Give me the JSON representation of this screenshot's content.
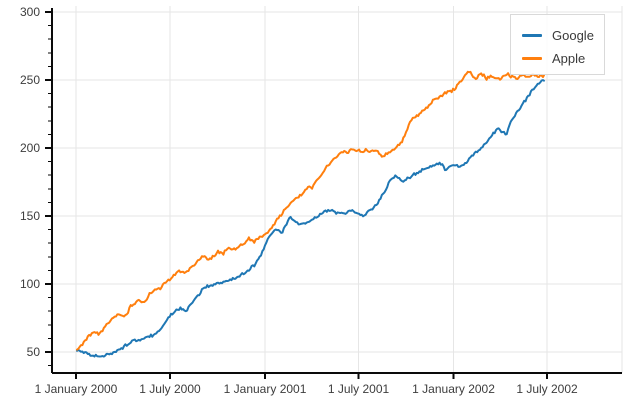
{
  "chart_data": {
    "type": "line",
    "title": "",
    "xlabel": "",
    "ylabel": "",
    "grid": true,
    "legend_position": "top-right",
    "x_axis": {
      "kind": "date",
      "ticks": [
        {
          "day": 0,
          "label": "1 January 2000"
        },
        {
          "day": 182,
          "label": "1 July 2000"
        },
        {
          "day": 366,
          "label": "1 January 2001"
        },
        {
          "day": 547,
          "label": "1 July 2001"
        },
        {
          "day": 731,
          "label": "1 January 2002"
        },
        {
          "day": 912,
          "label": "1 July 2002"
        }
      ],
      "data_day_range": [
        2,
        906
      ]
    },
    "y_axis": {
      "major_ticks": [
        50,
        100,
        150,
        200,
        250,
        300
      ],
      "minor_step": 10,
      "visible_range": [
        34.6,
        304.4
      ]
    },
    "colors": {
      "axis": "#0a0a0a",
      "grid": "#e6e6e6",
      "tick_label": "#3d3d3d",
      "legend_border": "#d9d9d9",
      "legend_text": "#3a3a3a",
      "background": "#ffffff"
    },
    "series": [
      {
        "name": "Google",
        "color": "#1f77b4",
        "points": [
          [
            2,
            51
          ],
          [
            12,
            50
          ],
          [
            25,
            48
          ],
          [
            42,
            46.8
          ],
          [
            55,
            47.6
          ],
          [
            70,
            49.5
          ],
          [
            85,
            52
          ],
          [
            100,
            55.5
          ],
          [
            112,
            58.8
          ],
          [
            122,
            58
          ],
          [
            135,
            60.5
          ],
          [
            150,
            62.5
          ],
          [
            163,
            66
          ],
          [
            172,
            71
          ],
          [
            182,
            77
          ],
          [
            192,
            80
          ],
          [
            203,
            82
          ],
          [
            210,
            79.5
          ],
          [
            222,
            84
          ],
          [
            235,
            91
          ],
          [
            248,
            97.5
          ],
          [
            260,
            99
          ],
          [
            272,
            100
          ],
          [
            285,
            101
          ],
          [
            300,
            103
          ],
          [
            315,
            105.5
          ],
          [
            330,
            109
          ],
          [
            345,
            114
          ],
          [
            358,
            121
          ],
          [
            366,
            128.5
          ],
          [
            377,
            136
          ],
          [
            388,
            140
          ],
          [
            398,
            137.5
          ],
          [
            408,
            144
          ],
          [
            415,
            149.5
          ],
          [
            424,
            146
          ],
          [
            434,
            143.5
          ],
          [
            448,
            145
          ],
          [
            462,
            148.5
          ],
          [
            478,
            152.5
          ],
          [
            492,
            154.5
          ],
          [
            505,
            152.5
          ],
          [
            520,
            152
          ],
          [
            533,
            154.5
          ],
          [
            547,
            152
          ],
          [
            558,
            150.5
          ],
          [
            572,
            155
          ],
          [
            585,
            160
          ],
          [
            598,
            168
          ],
          [
            609,
            177
          ],
          [
            620,
            180
          ],
          [
            632,
            174.5
          ],
          [
            648,
            179
          ],
          [
            661,
            181.5
          ],
          [
            675,
            184.5
          ],
          [
            695,
            188
          ],
          [
            706,
            189
          ],
          [
            716,
            184
          ],
          [
            731,
            187.5
          ],
          [
            745,
            186.5
          ],
          [
            756,
            190
          ],
          [
            764,
            193.5
          ],
          [
            783,
            199.5
          ],
          [
            803,
            208
          ],
          [
            815,
            214
          ],
          [
            833,
            210
          ],
          [
            841,
            219
          ],
          [
            861,
            230
          ],
          [
            886,
            244
          ],
          [
            906,
            250.5
          ]
        ]
      },
      {
        "name": "Apple",
        "color": "#ff7f0e",
        "points": [
          [
            2,
            51.5
          ],
          [
            15,
            57
          ],
          [
            25,
            62
          ],
          [
            35,
            65
          ],
          [
            45,
            63.5
          ],
          [
            55,
            68
          ],
          [
            65,
            72
          ],
          [
            75,
            76
          ],
          [
            85,
            78.5
          ],
          [
            92,
            76
          ],
          [
            100,
            79
          ],
          [
            105,
            83
          ],
          [
            115,
            86
          ],
          [
            124,
            88
          ],
          [
            133,
            85.5
          ],
          [
            143,
            93
          ],
          [
            152,
            96
          ],
          [
            162,
            96.5
          ],
          [
            172,
            101
          ],
          [
            182,
            103.5
          ],
          [
            192,
            106.5
          ],
          [
            200,
            110
          ],
          [
            212,
            108
          ],
          [
            225,
            113
          ],
          [
            238,
            118
          ],
          [
            248,
            121
          ],
          [
            256,
            117.5
          ],
          [
            265,
            120
          ],
          [
            275,
            124
          ],
          [
            285,
            122
          ],
          [
            295,
            127
          ],
          [
            305,
            125
          ],
          [
            315,
            128
          ],
          [
            325,
            130
          ],
          [
            335,
            133.5
          ],
          [
            345,
            131
          ],
          [
            355,
            134
          ],
          [
            366,
            136
          ],
          [
            380,
            142
          ],
          [
            395,
            150
          ],
          [
            410,
            157
          ],
          [
            425,
            163
          ],
          [
            440,
            167
          ],
          [
            450,
            172
          ],
          [
            457,
            170
          ],
          [
            465,
            176
          ],
          [
            475,
            180
          ],
          [
            485,
            186
          ],
          [
            495,
            190
          ],
          [
            505,
            194
          ],
          [
            515,
            197.5
          ],
          [
            525,
            196
          ],
          [
            535,
            199
          ],
          [
            547,
            198
          ],
          [
            555,
            197
          ],
          [
            562,
            199.5
          ],
          [
            570,
            196.5
          ],
          [
            580,
            198.5
          ],
          [
            593,
            193.6
          ],
          [
            603,
            196
          ],
          [
            613,
            198.5
          ],
          [
            622,
            201
          ],
          [
            632,
            205.5
          ],
          [
            648,
            220
          ],
          [
            658,
            223
          ],
          [
            670,
            227
          ],
          [
            680,
            230
          ],
          [
            692,
            235
          ],
          [
            705,
            238
          ],
          [
            716,
            240.5
          ],
          [
            731,
            242.5
          ],
          [
            740,
            247
          ],
          [
            752,
            252.5
          ],
          [
            760,
            256.5
          ],
          [
            768,
            253
          ],
          [
            775,
            251.5
          ],
          [
            785,
            254.5
          ],
          [
            795,
            251
          ],
          [
            805,
            253
          ],
          [
            815,
            250.5
          ],
          [
            825,
            252
          ],
          [
            835,
            254.5
          ],
          [
            845,
            252
          ],
          [
            855,
            251
          ],
          [
            865,
            253.5
          ],
          [
            875,
            252
          ],
          [
            885,
            254
          ],
          [
            895,
            252.5
          ],
          [
            906,
            253.5
          ]
        ]
      }
    ]
  }
}
